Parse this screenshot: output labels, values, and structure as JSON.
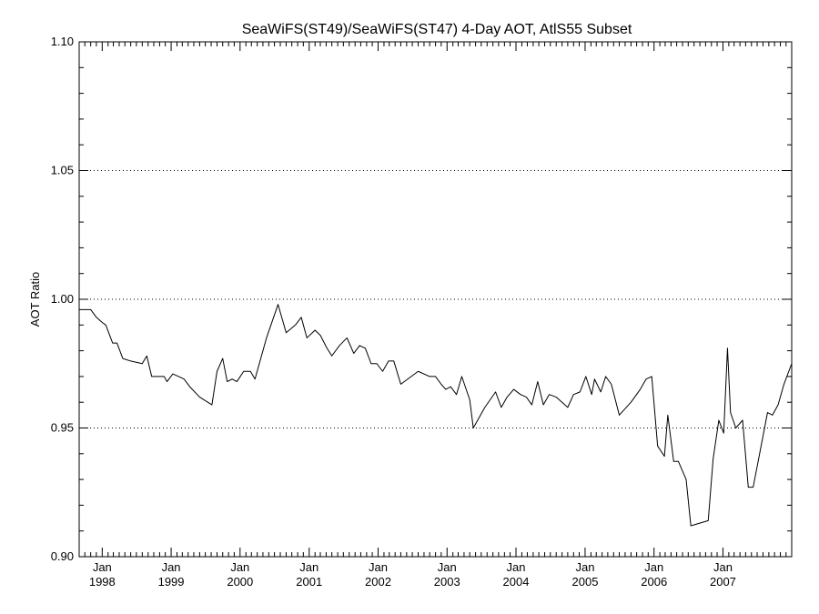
{
  "chart_data": {
    "type": "line",
    "title": "SeaWiFS(ST49)/SeaWiFS(ST47) 4-Day AOT, AtlS55 Subset",
    "xlabel": "",
    "ylabel": "AOT Ratio",
    "ylim": [
      0.9,
      1.1
    ],
    "xlim": [
      "1997-09-01",
      "2007-12-31"
    ],
    "y_ticks": [
      "0.90",
      "0.95",
      "1.00",
      "1.05",
      "1.10"
    ],
    "x_ticks": [
      {
        "month": "Jan",
        "year": "1998",
        "date": "1998-01-01"
      },
      {
        "month": "Jan",
        "year": "1999",
        "date": "1999-01-01"
      },
      {
        "month": "Jan",
        "year": "2000",
        "date": "2000-01-01"
      },
      {
        "month": "Jan",
        "year": "2001",
        "date": "2001-01-01"
      },
      {
        "month": "Jan",
        "year": "2002",
        "date": "2002-01-01"
      },
      {
        "month": "Jan",
        "year": "2003",
        "date": "2003-01-01"
      },
      {
        "month": "Jan",
        "year": "2004",
        "date": "2004-01-01"
      },
      {
        "month": "Jan",
        "year": "2005",
        "date": "2005-01-01"
      },
      {
        "month": "Jan",
        "year": "2006",
        "date": "2006-01-01"
      },
      {
        "month": "Jan",
        "year": "2007",
        "date": "2007-01-01"
      }
    ],
    "grid": "dotted horizontal at 0.95, 1.00, 1.05",
    "series": [
      {
        "color": "#000000",
        "points": [
          [
            "1997-09-01",
            0.996
          ],
          [
            "1997-11-01",
            0.996
          ],
          [
            "1997-12-01",
            0.993
          ],
          [
            "1998-01-01",
            0.991
          ],
          [
            "1998-01-20",
            0.99
          ],
          [
            "1998-02-25",
            0.983
          ],
          [
            "1998-03-20",
            0.983
          ],
          [
            "1998-04-20",
            0.977
          ],
          [
            "1998-06-01",
            0.976
          ],
          [
            "1998-08-01",
            0.975
          ],
          [
            "1998-08-25",
            0.978
          ],
          [
            "1998-09-20",
            0.97
          ],
          [
            "1998-10-20",
            0.97
          ],
          [
            "1998-11-25",
            0.97
          ],
          [
            "1998-12-10",
            0.968
          ],
          [
            "1999-01-10",
            0.971
          ],
          [
            "1999-02-10",
            0.97
          ],
          [
            "1999-03-10",
            0.969
          ],
          [
            "1999-04-10",
            0.966
          ],
          [
            "1999-06-01",
            0.962
          ],
          [
            "1999-08-05",
            0.959
          ],
          [
            "1999-09-01",
            0.972
          ],
          [
            "1999-10-01",
            0.977
          ],
          [
            "1999-10-25",
            0.968
          ],
          [
            "1999-11-20",
            0.969
          ],
          [
            "1999-12-15",
            0.968
          ],
          [
            "2000-01-20",
            0.972
          ],
          [
            "2000-02-25",
            0.972
          ],
          [
            "2000-03-20",
            0.969
          ],
          [
            "2000-05-20",
            0.985
          ],
          [
            "2000-07-20",
            0.998
          ],
          [
            "2000-09-01",
            0.987
          ],
          [
            "2000-10-20",
            0.99
          ],
          [
            "2000-11-20",
            0.993
          ],
          [
            "2000-12-20",
            0.985
          ],
          [
            "2001-02-01",
            0.988
          ],
          [
            "2001-03-01",
            0.986
          ],
          [
            "2001-04-05",
            0.981
          ],
          [
            "2001-05-01",
            0.978
          ],
          [
            "2001-06-10",
            0.982
          ],
          [
            "2001-07-20",
            0.985
          ],
          [
            "2001-08-25",
            0.979
          ],
          [
            "2001-09-25",
            0.982
          ],
          [
            "2001-10-25",
            0.981
          ],
          [
            "2001-11-25",
            0.975
          ],
          [
            "2001-12-25",
            0.975
          ],
          [
            "2002-01-25",
            0.972
          ],
          [
            "2002-02-25",
            0.976
          ],
          [
            "2002-03-25",
            0.976
          ],
          [
            "2002-05-01",
            0.967
          ],
          [
            "2002-08-01",
            0.972
          ],
          [
            "2002-10-01",
            0.97
          ],
          [
            "2002-11-01",
            0.97
          ],
          [
            "2002-12-01",
            0.967
          ],
          [
            "2002-12-25",
            0.965
          ],
          [
            "2003-01-20",
            0.966
          ],
          [
            "2003-02-20",
            0.963
          ],
          [
            "2003-03-20",
            0.97
          ],
          [
            "2003-05-01",
            0.961
          ],
          [
            "2003-05-20",
            0.95
          ],
          [
            "2003-07-20",
            0.958
          ],
          [
            "2003-09-15",
            0.964
          ],
          [
            "2003-10-15",
            0.958
          ],
          [
            "2003-11-15",
            0.962
          ],
          [
            "2003-12-20",
            0.965
          ],
          [
            "2004-01-25",
            0.963
          ],
          [
            "2004-02-25",
            0.962
          ],
          [
            "2004-03-25",
            0.959
          ],
          [
            "2004-04-25",
            0.968
          ],
          [
            "2004-05-25",
            0.959
          ],
          [
            "2004-06-25",
            0.963
          ],
          [
            "2004-08-01",
            0.962
          ],
          [
            "2004-10-01",
            0.958
          ],
          [
            "2004-11-01",
            0.963
          ],
          [
            "2004-12-05",
            0.964
          ],
          [
            "2005-01-05",
            0.97
          ],
          [
            "2005-02-05",
            0.963
          ],
          [
            "2005-02-20",
            0.969
          ],
          [
            "2005-03-25",
            0.964
          ],
          [
            "2005-04-20",
            0.97
          ],
          [
            "2005-05-20",
            0.967
          ],
          [
            "2005-07-01",
            0.955
          ],
          [
            "2005-09-01",
            0.96
          ],
          [
            "2005-10-20",
            0.965
          ],
          [
            "2005-11-20",
            0.969
          ],
          [
            "2005-12-20",
            0.97
          ],
          [
            "2006-01-20",
            0.943
          ],
          [
            "2006-02-25",
            0.939
          ],
          [
            "2006-03-15",
            0.955
          ],
          [
            "2006-04-15",
            0.937
          ],
          [
            "2006-05-10",
            0.937
          ],
          [
            "2006-06-20",
            0.93
          ],
          [
            "2006-07-15",
            0.912
          ],
          [
            "2006-10-15",
            0.914
          ],
          [
            "2006-11-10",
            0.938
          ],
          [
            "2006-12-10",
            0.953
          ],
          [
            "2007-01-05",
            0.948
          ],
          [
            "2007-01-25",
            0.981
          ],
          [
            "2007-02-10",
            0.956
          ],
          [
            "2007-03-10",
            0.95
          ],
          [
            "2007-04-15",
            0.953
          ],
          [
            "2007-05-15",
            0.927
          ],
          [
            "2007-06-10",
            0.927
          ],
          [
            "2007-08-25",
            0.956
          ],
          [
            "2007-09-20",
            0.955
          ],
          [
            "2007-10-20",
            0.959
          ],
          [
            "2007-11-20",
            0.967
          ],
          [
            "2007-12-31",
            0.975
          ]
        ]
      }
    ]
  }
}
